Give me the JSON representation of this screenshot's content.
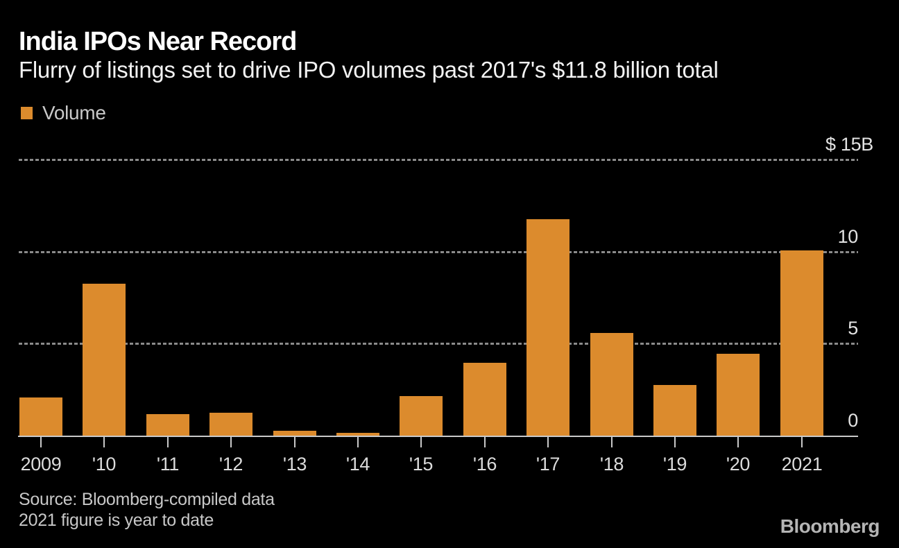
{
  "header": {
    "title": "India IPOs Near Record",
    "subtitle": "Flurry of listings set to drive IPO volumes past 2017's $11.8 billion total"
  },
  "legend": {
    "label": "Volume",
    "swatch_color": "#DC8B2D"
  },
  "chart_data": {
    "type": "bar",
    "title": "India IPOs Near Record",
    "subtitle": "Flurry of listings set to drive IPO volumes past 2017's $11.8 billion total",
    "unit": "USD billions",
    "categories": [
      "2009",
      "'10",
      "'11",
      "'12",
      "'13",
      "'14",
      "'15",
      "'16",
      "'17",
      "'18",
      "'19",
      "'20",
      "2021"
    ],
    "series": [
      {
        "name": "Volume",
        "color": "#DC8B2D",
        "values": [
          2.1,
          8.3,
          1.2,
          1.3,
          0.3,
          0.2,
          2.2,
          4.0,
          11.8,
          5.6,
          2.8,
          4.5,
          10.1
        ]
      }
    ],
    "ylim": [
      0,
      15
    ],
    "y_ticks": [
      {
        "value": 15,
        "label": "$ 15B"
      },
      {
        "value": 10,
        "label": "10"
      },
      {
        "value": 5,
        "label": "5"
      },
      {
        "value": 0,
        "label": "0"
      }
    ],
    "grid": "dotted horizontal gridlines at 5, 10, 15; solid baseline at 0",
    "legend_position": "top-left"
  },
  "footer": {
    "source_line1": "Source: Bloomberg-compiled data",
    "source_line2": "2021 figure is year to date",
    "brand": "Bloomberg"
  },
  "colors": {
    "background": "#000000",
    "bar": "#DC8B2D",
    "gridline": "#8A8A8A",
    "axis_line": "#C9C9C9",
    "title_text": "#FFFFFF",
    "subtitle_text": "#F2F2F2",
    "axis_label": "#E3E3E3",
    "x_label": "#DBDBDB",
    "legend_text": "#C9C9C9",
    "source_text": "#C8C8C8",
    "brand_text": "#B5B5B5"
  }
}
